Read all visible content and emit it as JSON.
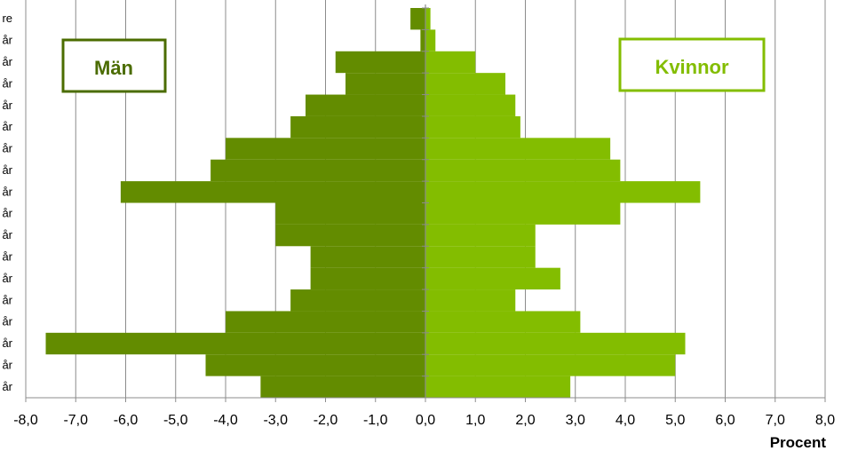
{
  "chart_data": {
    "type": "bar",
    "orientation": "horizontal",
    "categories": [
      "år",
      "år",
      "år",
      "år",
      "år",
      "år",
      "år",
      "år",
      "år",
      "år",
      "år",
      "år",
      "år",
      "år",
      "år",
      "år",
      "år",
      "re"
    ],
    "series": [
      {
        "name": "Män",
        "color": "#638c00",
        "values": [
          -3.3,
          -4.4,
          -7.6,
          -4.0,
          -2.7,
          -2.3,
          -2.3,
          -3.0,
          -3.0,
          -6.1,
          -4.3,
          -4.0,
          -2.7,
          -2.4,
          -1.6,
          -1.8,
          -0.1,
          -0.3
        ]
      },
      {
        "name": "Kvinnor",
        "color": "#83bd00",
        "values": [
          2.9,
          5.0,
          5.2,
          3.1,
          1.8,
          2.7,
          2.2,
          2.2,
          3.9,
          5.5,
          3.9,
          3.7,
          1.9,
          1.8,
          1.6,
          1.0,
          0.2,
          0.1
        ]
      }
    ],
    "xlim": [
      -8,
      8
    ],
    "x_ticks": [
      "-8,0",
      "-7,0",
      "-6,0",
      "-5,0",
      "-4,0",
      "-3,0",
      "-2,0",
      "-1,0",
      "0,0",
      "1,0",
      "2,0",
      "3,0",
      "4,0",
      "5,0",
      "6,0",
      "7,0",
      "8,0"
    ],
    "xlabel": "Procent",
    "ylabel": "",
    "title": "",
    "grid": "vertical",
    "legend": "boxes top-left and top-right"
  }
}
